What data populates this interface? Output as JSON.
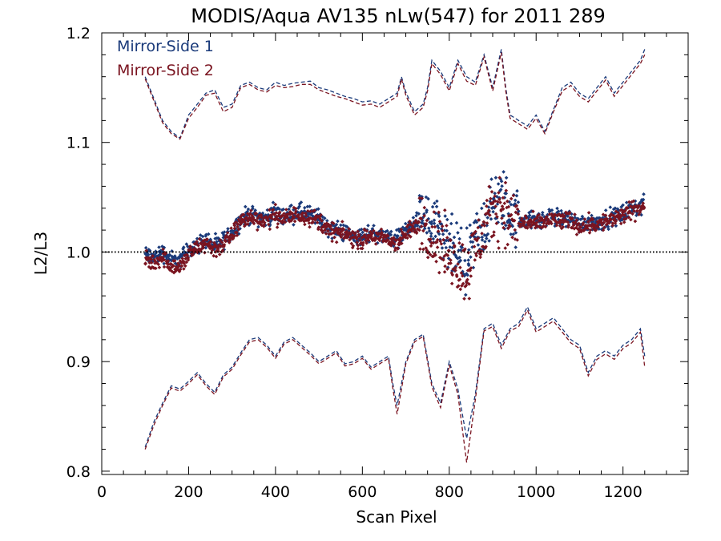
{
  "chart_data": {
    "type": "scatter",
    "title": "MODIS/Aqua AV135 nLw(547) for 2011 289",
    "xlabel": "Scan Pixel",
    "ylabel": "L2/L3",
    "xlim": [
      0,
      1350
    ],
    "ylim": [
      0.797,
      1.2
    ],
    "xticks": [
      0,
      200,
      400,
      600,
      800,
      1000,
      1200
    ],
    "yticks": [
      0.8,
      0.9,
      1.0,
      1.1,
      1.2
    ],
    "ytick_labels": [
      "0.8",
      "0.9",
      "1.0",
      "1.1",
      "1.2"
    ],
    "reference_line": 1.0,
    "legend_position": "top-left",
    "grid": false,
    "colors": {
      "ms1": "#1a3a7a",
      "ms2": "#7a1420"
    },
    "series": [
      {
        "name": "Mirror-Side 1",
        "mean": {
          "x": [
            100,
            120,
            140,
            160,
            180,
            200,
            220,
            240,
            260,
            280,
            300,
            320,
            340,
            360,
            380,
            400,
            420,
            440,
            460,
            480,
            500,
            520,
            540,
            560,
            580,
            600,
            620,
            640,
            660,
            680,
            700,
            720,
            740,
            760,
            780,
            800,
            820,
            840,
            860,
            880,
            900,
            920,
            940,
            960,
            980,
            1000,
            1020,
            1040,
            1060,
            1080,
            1100,
            1120,
            1140,
            1160,
            1180,
            1200,
            1220,
            1240,
            1250
          ],
          "y": [
            0.998,
            0.995,
            1.0,
            0.993,
            0.992,
            1.003,
            1.006,
            1.012,
            1.005,
            1.01,
            1.018,
            1.03,
            1.034,
            1.032,
            1.031,
            1.036,
            1.032,
            1.035,
            1.036,
            1.034,
            1.031,
            1.022,
            1.02,
            1.018,
            1.015,
            1.013,
            1.018,
            1.016,
            1.014,
            1.012,
            1.02,
            1.025,
            1.034,
            1.02,
            1.013,
            1.005,
            0.997,
            0.985,
            1.01,
            1.025,
            1.04,
            1.05,
            1.035,
            1.03,
            1.03,
            1.028,
            1.03,
            1.033,
            1.03,
            1.031,
            1.025,
            1.028,
            1.027,
            1.03,
            1.032,
            1.035,
            1.04,
            1.042,
            1.043
          ]
        },
        "upper": {
          "x": [
            100,
            120,
            140,
            160,
            180,
            200,
            220,
            240,
            260,
            280,
            300,
            320,
            340,
            360,
            380,
            400,
            420,
            440,
            460,
            480,
            500,
            520,
            540,
            560,
            580,
            600,
            620,
            640,
            660,
            680,
            690,
            700,
            720,
            740,
            750,
            760,
            780,
            800,
            820,
            840,
            860,
            880,
            900,
            920,
            930,
            940,
            960,
            980,
            1000,
            1020,
            1040,
            1060,
            1080,
            1100,
            1120,
            1140,
            1160,
            1180,
            1200,
            1220,
            1240,
            1250
          ],
          "y": [
            1.16,
            1.14,
            1.12,
            1.11,
            1.104,
            1.125,
            1.135,
            1.145,
            1.148,
            1.132,
            1.135,
            1.152,
            1.155,
            1.15,
            1.148,
            1.155,
            1.152,
            1.154,
            1.155,
            1.156,
            1.15,
            1.148,
            1.145,
            1.142,
            1.14,
            1.137,
            1.138,
            1.135,
            1.14,
            1.145,
            1.16,
            1.146,
            1.128,
            1.135,
            1.15,
            1.175,
            1.165,
            1.15,
            1.175,
            1.16,
            1.155,
            1.18,
            1.15,
            1.185,
            1.15,
            1.125,
            1.12,
            1.115,
            1.125,
            1.11,
            1.13,
            1.15,
            1.155,
            1.145,
            1.14,
            1.15,
            1.16,
            1.145,
            1.155,
            1.165,
            1.175,
            1.185
          ]
        },
        "lower": {
          "x": [
            100,
            120,
            140,
            160,
            180,
            200,
            220,
            240,
            260,
            280,
            300,
            320,
            340,
            360,
            380,
            400,
            420,
            440,
            460,
            480,
            500,
            520,
            540,
            560,
            580,
            600,
            620,
            640,
            660,
            670,
            680,
            700,
            720,
            740,
            760,
            780,
            800,
            820,
            840,
            860,
            880,
            900,
            920,
            940,
            960,
            980,
            1000,
            1020,
            1040,
            1060,
            1080,
            1100,
            1120,
            1140,
            1160,
            1180,
            1200,
            1220,
            1240,
            1250
          ],
          "y": [
            0.822,
            0.845,
            0.862,
            0.878,
            0.875,
            0.882,
            0.89,
            0.88,
            0.872,
            0.888,
            0.895,
            0.908,
            0.92,
            0.922,
            0.915,
            0.905,
            0.918,
            0.922,
            0.915,
            0.908,
            0.9,
            0.905,
            0.91,
            0.898,
            0.9,
            0.905,
            0.895,
            0.9,
            0.905,
            0.88,
            0.86,
            0.9,
            0.92,
            0.925,
            0.88,
            0.862,
            0.9,
            0.875,
            0.83,
            0.87,
            0.93,
            0.935,
            0.915,
            0.93,
            0.935,
            0.95,
            0.93,
            0.935,
            0.94,
            0.93,
            0.92,
            0.915,
            0.89,
            0.905,
            0.91,
            0.905,
            0.915,
            0.92,
            0.93,
            0.905
          ]
        }
      },
      {
        "name": "Mirror-Side 2",
        "mean": {
          "x": [
            100,
            120,
            140,
            160,
            180,
            200,
            220,
            240,
            260,
            280,
            300,
            320,
            340,
            360,
            380,
            400,
            420,
            440,
            460,
            480,
            500,
            520,
            540,
            560,
            580,
            600,
            620,
            640,
            660,
            680,
            700,
            720,
            740,
            760,
            780,
            800,
            820,
            840,
            860,
            880,
            900,
            920,
            940,
            960,
            980,
            1000,
            1020,
            1040,
            1060,
            1080,
            1100,
            1120,
            1140,
            1160,
            1180,
            1200,
            1220,
            1240,
            1250
          ],
          "y": [
            0.993,
            0.99,
            0.996,
            0.988,
            0.985,
            0.998,
            1.003,
            1.009,
            1.002,
            1.007,
            1.015,
            1.028,
            1.032,
            1.03,
            1.029,
            1.034,
            1.03,
            1.033,
            1.034,
            1.032,
            1.029,
            1.02,
            1.018,
            1.016,
            1.013,
            1.011,
            1.015,
            1.013,
            1.011,
            1.008,
            1.016,
            1.022,
            1.03,
            1.015,
            1.008,
            0.998,
            0.99,
            0.98,
            1.005,
            1.02,
            1.035,
            1.045,
            1.03,
            1.026,
            1.027,
            1.025,
            1.027,
            1.03,
            1.028,
            1.029,
            1.023,
            1.026,
            1.025,
            1.028,
            1.03,
            1.033,
            1.038,
            1.04,
            1.041
          ]
        },
        "upper": {
          "x": [
            100,
            120,
            140,
            160,
            180,
            200,
            220,
            240,
            260,
            280,
            300,
            320,
            340,
            360,
            380,
            400,
            420,
            440,
            460,
            480,
            500,
            520,
            540,
            560,
            580,
            600,
            620,
            640,
            660,
            680,
            690,
            700,
            720,
            740,
            750,
            760,
            780,
            800,
            820,
            840,
            860,
            880,
            900,
            920,
            930,
            940,
            960,
            980,
            1000,
            1020,
            1040,
            1060,
            1080,
            1100,
            1120,
            1140,
            1160,
            1180,
            1200,
            1220,
            1240,
            1250
          ],
          "y": [
            1.158,
            1.138,
            1.118,
            1.108,
            1.103,
            1.122,
            1.132,
            1.143,
            1.145,
            1.128,
            1.132,
            1.15,
            1.153,
            1.148,
            1.146,
            1.152,
            1.15,
            1.151,
            1.153,
            1.153,
            1.148,
            1.145,
            1.142,
            1.14,
            1.137,
            1.134,
            1.135,
            1.132,
            1.137,
            1.142,
            1.158,
            1.143,
            1.125,
            1.132,
            1.147,
            1.172,
            1.162,
            1.147,
            1.172,
            1.156,
            1.152,
            1.178,
            1.147,
            1.182,
            1.147,
            1.122,
            1.117,
            1.112,
            1.122,
            1.108,
            1.128,
            1.147,
            1.152,
            1.142,
            1.137,
            1.147,
            1.157,
            1.142,
            1.152,
            1.162,
            1.172,
            1.18
          ]
        },
        "lower": {
          "x": [
            100,
            120,
            140,
            160,
            180,
            200,
            220,
            240,
            260,
            280,
            300,
            320,
            340,
            360,
            380,
            400,
            420,
            440,
            460,
            480,
            500,
            520,
            540,
            560,
            580,
            600,
            620,
            640,
            660,
            670,
            680,
            700,
            720,
            740,
            760,
            780,
            800,
            820,
            840,
            860,
            880,
            900,
            920,
            940,
            960,
            980,
            1000,
            1020,
            1040,
            1060,
            1080,
            1100,
            1120,
            1140,
            1160,
            1180,
            1200,
            1220,
            1240,
            1250
          ],
          "y": [
            0.82,
            0.842,
            0.86,
            0.876,
            0.873,
            0.88,
            0.888,
            0.878,
            0.87,
            0.886,
            0.893,
            0.906,
            0.918,
            0.92,
            0.913,
            0.903,
            0.916,
            0.92,
            0.913,
            0.906,
            0.898,
            0.903,
            0.908,
            0.896,
            0.898,
            0.903,
            0.893,
            0.898,
            0.903,
            0.876,
            0.852,
            0.898,
            0.918,
            0.923,
            0.877,
            0.858,
            0.897,
            0.87,
            0.808,
            0.865,
            0.928,
            0.932,
            0.912,
            0.928,
            0.932,
            0.947,
            0.927,
            0.932,
            0.937,
            0.927,
            0.917,
            0.912,
            0.887,
            0.902,
            0.907,
            0.902,
            0.912,
            0.917,
            0.927,
            0.895
          ]
        }
      }
    ]
  }
}
